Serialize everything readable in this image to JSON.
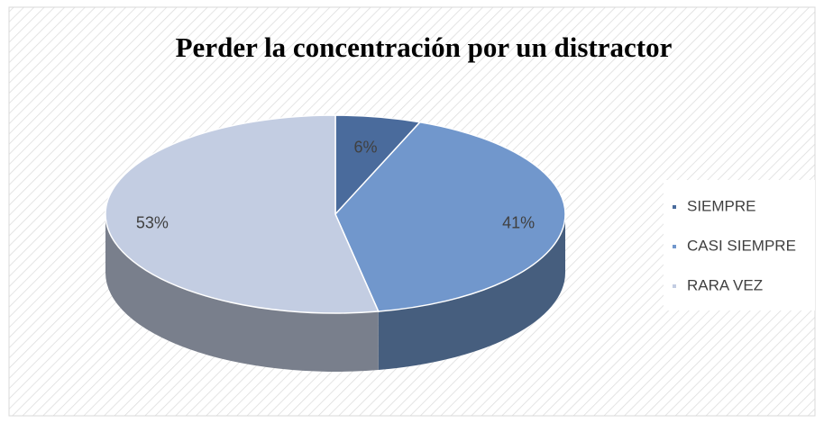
{
  "chart_data": {
    "type": "pie",
    "title": "Perder la concentración por un distractor",
    "categories": [
      "SIEMPRE",
      "CASI SIEMPRE",
      "RARA VEZ"
    ],
    "values": [
      6,
      41,
      53
    ],
    "value_labels": [
      "6%",
      "41%",
      "53%"
    ],
    "colors": [
      "#4a6b9c",
      "#7197cc",
      "#c3cde2"
    ],
    "legend": "right"
  }
}
